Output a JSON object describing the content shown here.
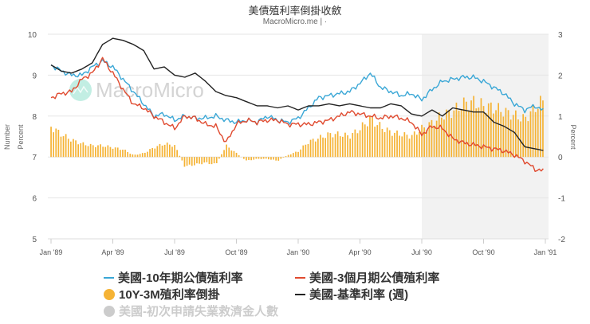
{
  "header": {
    "title": "美債殖利率倒掛收斂",
    "subtitle": "MacroMicro.me | ·"
  },
  "watermark": "MacroMicro",
  "colors": {
    "ten_year": "#3aa7d6",
    "three_month": "#e04a2f",
    "spread": "#f5b335",
    "fed_rate": "#222222",
    "claims_hidden": "#cccccc",
    "shade": "#f2f2f2",
    "grid": "#e6e6e6"
  },
  "legend": [
    {
      "label": "美國-10年期公債殖利率",
      "marker": "line",
      "color": "#3aa7d6",
      "visible": true
    },
    {
      "label": "美國-3個月期公債殖利率",
      "marker": "line",
      "color": "#e04a2f",
      "visible": true
    },
    {
      "label": "10Y-3M殖利率倒掛",
      "marker": "dot",
      "color": "#f5b335",
      "visible": true
    },
    {
      "label": "美國-基準利率 (週)",
      "marker": "line",
      "color": "#222222",
      "visible": true
    },
    {
      "label": "美國-初次申請失業救濟金人數",
      "marker": "dot",
      "color": "#cccccc",
      "visible": false
    }
  ],
  "chart_data": {
    "type": "line",
    "title": "美債殖利率倒掛收斂",
    "subtitle": "MacroMicro.me",
    "x_ticks": [
      "Jan '89",
      "Apr '89",
      "Jul '89",
      "Oct '89",
      "Jan '90",
      "Apr '90",
      "Jul '90",
      "Oct '90",
      "Jan '91"
    ],
    "y_left": {
      "labels": [
        "Number",
        "Percent"
      ],
      "ticks": [
        5,
        6,
        7,
        8,
        9,
        10
      ],
      "range": [
        5,
        10
      ]
    },
    "y_right": {
      "label": "Percent",
      "ticks": [
        -2,
        -1,
        0,
        1,
        2,
        3
      ],
      "range": [
        -2,
        3
      ]
    },
    "shaded_region": {
      "from": "Jul '90",
      "to": "Jan '91"
    },
    "x_months": [
      0,
      0.5,
      1,
      1.5,
      2,
      2.5,
      3,
      3.5,
      4,
      4.5,
      5,
      5.5,
      6,
      6.5,
      7,
      7.5,
      8,
      8.5,
      9,
      9.5,
      10,
      10.5,
      11,
      11.5,
      12,
      12.5,
      13,
      13.5,
      14,
      14.5,
      15,
      15.5,
      16,
      16.5,
      17,
      17.5,
      18,
      18.5,
      19,
      19.5,
      20,
      20.5,
      21,
      21.5,
      22,
      22.5,
      23,
      23.5,
      24
    ],
    "series": [
      {
        "name": "美國-10年期公債殖利率",
        "axis": "left",
        "values": [
          9.25,
          9.1,
          9.0,
          9.0,
          9.2,
          9.35,
          9.2,
          8.9,
          8.6,
          8.3,
          8.0,
          8.05,
          7.9,
          8.0,
          7.95,
          7.95,
          8.0,
          7.9,
          7.85,
          7.9,
          7.85,
          8.0,
          7.9,
          7.85,
          7.95,
          8.2,
          8.45,
          8.5,
          8.55,
          8.6,
          8.8,
          9.05,
          8.7,
          8.6,
          8.5,
          8.55,
          8.4,
          8.65,
          8.85,
          8.9,
          8.95,
          8.95,
          8.85,
          8.7,
          8.55,
          8.3,
          8.15,
          8.25,
          8.1
        ]
      },
      {
        "name": "美國-3個月期公債殖利率",
        "axis": "left",
        "values": [
          8.45,
          8.55,
          8.6,
          8.9,
          9.05,
          9.4,
          9.05,
          8.65,
          8.3,
          8.2,
          8.0,
          7.85,
          7.7,
          8.0,
          7.95,
          7.8,
          7.75,
          7.35,
          7.8,
          7.9,
          7.85,
          7.9,
          7.9,
          7.8,
          7.8,
          7.8,
          7.85,
          7.9,
          8.0,
          8.1,
          8.05,
          8.0,
          7.95,
          8.0,
          7.95,
          7.85,
          7.55,
          7.75,
          7.7,
          7.45,
          7.35,
          7.3,
          7.25,
          7.2,
          7.15,
          7.05,
          6.9,
          6.7,
          6.65
        ]
      },
      {
        "name": "10Y-3M殖利率倒掛",
        "axis": "right",
        "type": "bar",
        "values": [
          0.8,
          0.6,
          0.45,
          0.35,
          0.3,
          0.3,
          0.25,
          0.2,
          0.05,
          0.1,
          0.25,
          0.35,
          0.3,
          -0.25,
          -0.2,
          -0.15,
          -0.2,
          0.3,
          0.1,
          -0.1,
          -0.05,
          -0.05,
          -0.1,
          0.05,
          0.15,
          0.4,
          0.5,
          0.6,
          0.6,
          0.55,
          0.75,
          1.0,
          0.8,
          0.65,
          0.6,
          0.55,
          0.75,
          0.9,
          1.1,
          1.2,
          1.4,
          1.45,
          1.35,
          1.3,
          1.2,
          1.1,
          1.0,
          1.3,
          1.55
        ]
      },
      {
        "name": "美國-基準利率 (週)",
        "axis": "left",
        "values": [
          9.25,
          9.1,
          9.05,
          9.15,
          9.3,
          9.75,
          9.9,
          9.85,
          9.75,
          9.6,
          9.15,
          9.2,
          9.0,
          8.95,
          9.05,
          8.85,
          8.6,
          8.5,
          8.45,
          8.35,
          8.25,
          8.25,
          8.2,
          8.25,
          8.15,
          8.25,
          8.25,
          8.3,
          8.25,
          8.3,
          8.25,
          8.2,
          8.2,
          8.3,
          8.25,
          8.05,
          8.0,
          8.15,
          8.0,
          8.2,
          8.15,
          8.1,
          8.1,
          7.85,
          7.75,
          7.6,
          7.25,
          7.2,
          7.15
        ]
      },
      {
        "name": "美國-初次申請失業救濟金人數",
        "axis": "left",
        "visible": false,
        "values": []
      }
    ]
  }
}
